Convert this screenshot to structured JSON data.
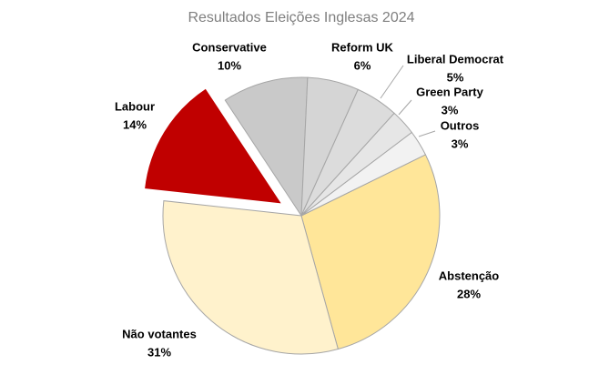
{
  "chart_data": {
    "type": "pie",
    "title": "Resultados Eleições Inglesas 2024",
    "categories": [
      "Abstenção",
      "Não votantes",
      "Labour",
      "Conservative",
      "Reform UK",
      "Liberal Democrat",
      "Green Party",
      "Outros"
    ],
    "values": [
      28,
      31,
      14,
      10,
      6,
      5,
      3,
      3
    ],
    "value_labels": [
      "28%",
      "31%",
      "14%",
      "10%",
      "6%",
      "5%",
      "3%",
      "3%"
    ],
    "colors": [
      "#ffe699",
      "#fff2cc",
      "#c00000",
      "#c9c9c9",
      "#d5d5d5",
      "#dcdcdc",
      "#e6e6e6",
      "#f2f2f2"
    ]
  }
}
